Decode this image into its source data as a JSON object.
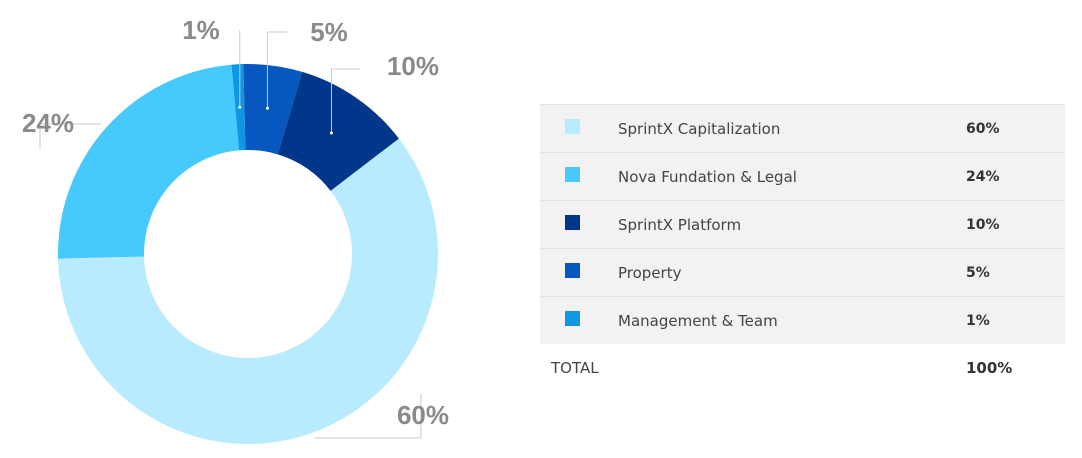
{
  "chart_data": {
    "type": "pie",
    "variant": "donut",
    "slices": [
      {
        "label": "Management & Team",
        "value": 1,
        "color": "#0f97e6",
        "display": "1%"
      },
      {
        "label": "Property",
        "value": 5,
        "color": "#0657bf",
        "display": "5%"
      },
      {
        "label": "SprintX Platform",
        "value": 10,
        "color": "#01378a",
        "display": "10%"
      },
      {
        "label": "SprintX Capitalization",
        "value": 60,
        "color": "#b8ebfd",
        "display": "60%"
      },
      {
        "label": "Nova Fundation & Legal",
        "value": 24,
        "color": "#46c9fd",
        "display": "24%"
      }
    ]
  },
  "legend": {
    "rows": [
      {
        "label": "SprintX Capitalization",
        "value": "60%",
        "color": "#b8ebfd"
      },
      {
        "label": "Nova Fundation & Legal",
        "value": "24%",
        "color": "#46c9fd"
      },
      {
        "label": "SprintX Platform",
        "value": "10%",
        "color": "#01378a"
      },
      {
        "label": "Property",
        "value": "5%",
        "color": "#0657bf"
      },
      {
        "label": "Management & Team",
        "value": "1%",
        "color": "#0f97e6"
      }
    ],
    "total_label": "TOTAL",
    "total_value": "100%"
  }
}
